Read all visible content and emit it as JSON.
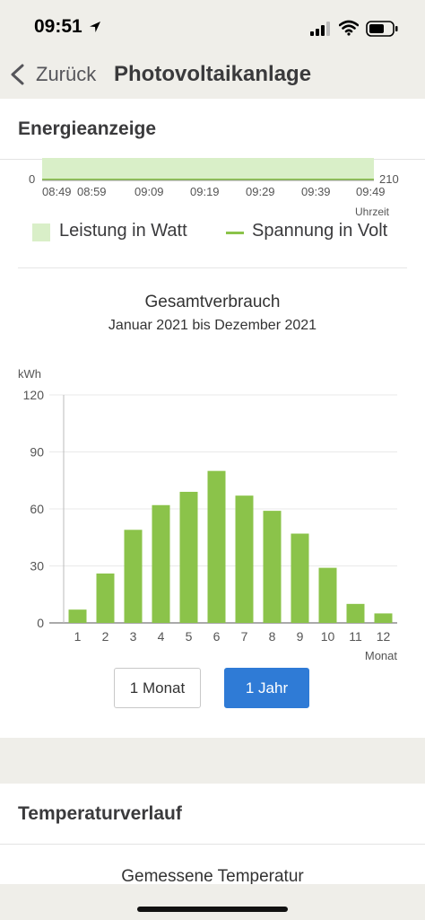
{
  "status_bar": {
    "time": "09:51"
  },
  "nav": {
    "back_label": "Zurück",
    "title": "Photovoltaikanlage"
  },
  "energy_section": {
    "header": "Energieanzeige",
    "live_chart": {
      "y_left_tick": "0",
      "y_right_tick": "210",
      "x_ticks": [
        "08:49",
        "08:59",
        "09:09",
        "09:19",
        "09:29",
        "09:39",
        "09:49"
      ],
      "x_label": "Uhrzeit",
      "legend": [
        {
          "label": "Leistung in Watt",
          "color": "#d9efc8"
        },
        {
          "label": "Spannung in Volt",
          "color": "#8bc34a"
        }
      ]
    }
  },
  "chart_data": {
    "type": "bar",
    "title": "Gesamtverbrauch",
    "subtitle": "Januar 2021 bis Dezember 2021",
    "ylabel": "kWh",
    "xlabel": "Monat",
    "categories": [
      "1",
      "2",
      "3",
      "4",
      "5",
      "6",
      "7",
      "8",
      "9",
      "10",
      "11",
      "12"
    ],
    "values": [
      7,
      26,
      49,
      62,
      69,
      80,
      67,
      59,
      47,
      29,
      10,
      5
    ],
    "ylim": [
      0,
      120
    ],
    "yticks": [
      0,
      30,
      60,
      90,
      120
    ],
    "color": "#8bc34a",
    "grid": true
  },
  "period_buttons": {
    "month": "1 Monat",
    "year": "1 Jahr",
    "active": "year",
    "active_color": "#2f7bd6"
  },
  "temperature_section": {
    "header": "Temperaturverlauf",
    "subtitle": "Gemessene Temperatur"
  }
}
